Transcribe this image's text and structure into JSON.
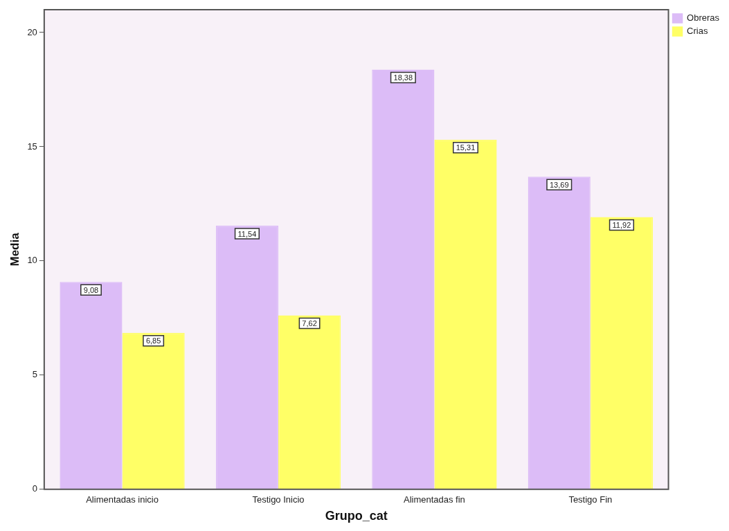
{
  "chart_data": {
    "type": "bar",
    "xlabel": "Grupo_cat",
    "ylabel": "Media",
    "categories": [
      "Alimentadas inicio",
      "Testigo Inicio",
      "Alimentadas fin",
      "Testigo Fin"
    ],
    "series": [
      {
        "name": "Obreras",
        "color": "#dcbcf7",
        "values": [
          9.08,
          11.54,
          18.38,
          13.69
        ],
        "value_labels": [
          "9,08",
          "11,54",
          "18,38",
          "13,69"
        ]
      },
      {
        "name": "Crias",
        "color": "#ffff66",
        "values": [
          6.85,
          7.62,
          15.31,
          11.92
        ],
        "value_labels": [
          "6,85",
          "7,62",
          "15,31",
          "11,92"
        ]
      }
    ],
    "ylim": [
      0,
      21
    ],
    "yticks": [
      0,
      5,
      10,
      15,
      20
    ],
    "grid": false,
    "legend": "top right"
  }
}
